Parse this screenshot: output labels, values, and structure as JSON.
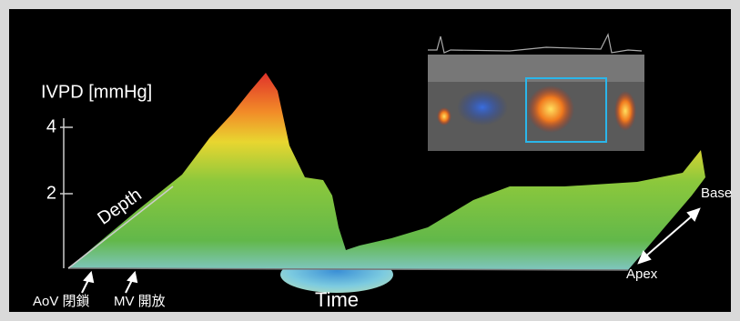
{
  "axis": {
    "label": "IVPD [mmHg]",
    "ticks": [
      "4",
      "2"
    ],
    "depth": "Depth",
    "time": "Time"
  },
  "events": [
    "AoV 閉鎖",
    "MV 開放"
  ],
  "direction": {
    "base": "Base",
    "apex": "Apex"
  }
}
